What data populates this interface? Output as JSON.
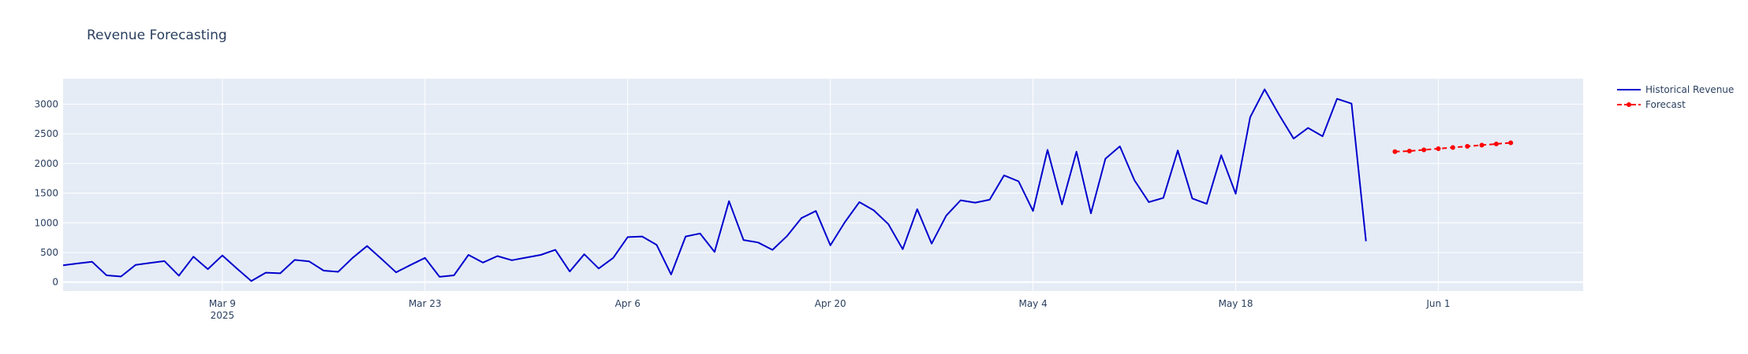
{
  "chart_data": {
    "type": "line",
    "title": "Revenue Forecasting",
    "xlabel": "",
    "ylabel": "",
    "x_start": "2025-02-26",
    "xlim": [
      "2025-02-26",
      "2025-06-11"
    ],
    "ylim": [
      -150,
      3430
    ],
    "y_ticks": [
      0,
      500,
      1000,
      1500,
      2000,
      2500,
      3000
    ],
    "x_ticks": [
      {
        "date": "2025-03-09",
        "label": "Mar 9",
        "sublabel": "2025"
      },
      {
        "date": "2025-03-23",
        "label": "Mar 23",
        "sublabel": ""
      },
      {
        "date": "2025-04-06",
        "label": "Apr 6",
        "sublabel": ""
      },
      {
        "date": "2025-04-20",
        "label": "Apr 20",
        "sublabel": ""
      },
      {
        "date": "2025-05-04",
        "label": "May 4",
        "sublabel": ""
      },
      {
        "date": "2025-05-18",
        "label": "May 18",
        "sublabel": ""
      },
      {
        "date": "2025-06-01",
        "label": "Jun 1",
        "sublabel": ""
      }
    ],
    "grid": true,
    "legend_position": "top-right",
    "series": [
      {
        "name": "Historical Revenue",
        "color": "#0000cd",
        "style": "solid",
        "start": "2025-02-26",
        "values": [
          285,
          315,
          345,
          115,
          95,
          290,
          325,
          355,
          110,
          430,
          220,
          450,
          230,
          20,
          160,
          150,
          375,
          350,
          195,
          175,
          410,
          610,
          390,
          165,
          290,
          410,
          90,
          115,
          460,
          330,
          440,
          370,
          415,
          460,
          545,
          180,
          470,
          230,
          410,
          760,
          770,
          630,
          130,
          770,
          820,
          510,
          1365,
          710,
          670,
          545,
          775,
          1080,
          1200,
          620,
          1010,
          1350,
          1210,
          980,
          555,
          1230,
          650,
          1120,
          1380,
          1340,
          1390,
          1800,
          1700,
          1200,
          2230,
          1310,
          2200,
          1160,
          2080,
          2290,
          1720,
          1350,
          1420,
          2220,
          1410,
          1320,
          2140,
          1490,
          2780,
          3250,
          2820,
          2420,
          2600,
          2460,
          3090,
          3010,
          690
        ]
      },
      {
        "name": "Forecast",
        "color": "#ff0000",
        "style": "dash-markers",
        "x": [
          "2025-05-29",
          "2025-05-30",
          "2025-05-31",
          "2025-06-01",
          "2025-06-02",
          "2025-06-03",
          "2025-06-04",
          "2025-06-05",
          "2025-06-06"
        ],
        "values": [
          2200,
          2210,
          2230,
          2250,
          2270,
          2290,
          2310,
          2330,
          2350
        ]
      }
    ]
  }
}
